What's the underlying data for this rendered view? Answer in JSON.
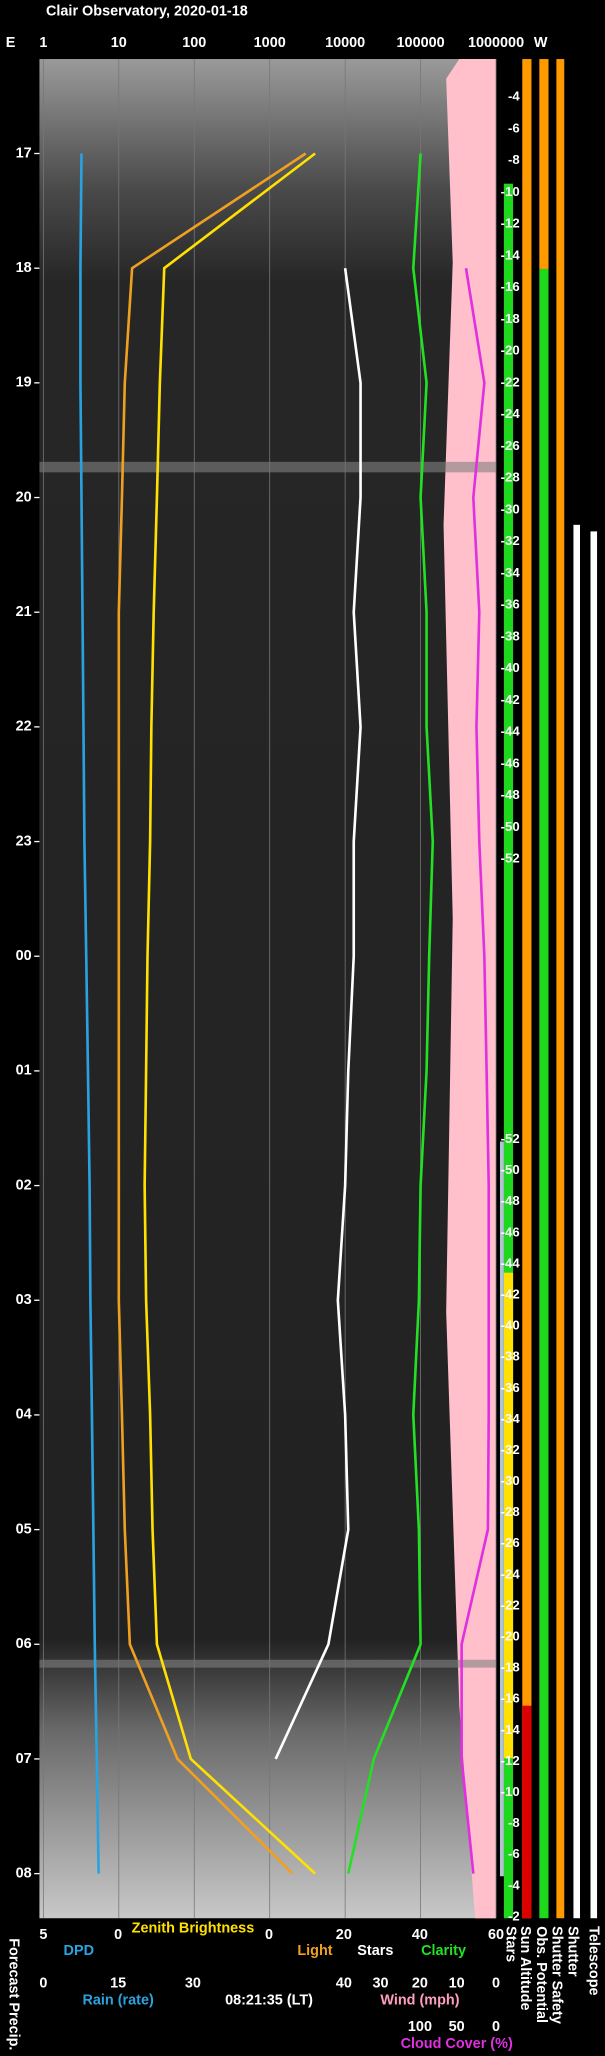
{
  "chart_data": {
    "type": "line",
    "title": "Clair Observatory, 2020-01-18",
    "left_label": "E",
    "right_label": "W",
    "times": [
      "17",
      "18",
      "19",
      "20",
      "21",
      "22",
      "23",
      "00",
      "01",
      "02",
      "03",
      "04",
      "05",
      "06",
      "07",
      "08"
    ],
    "xscale": "log",
    "xlim": [
      1,
      1000000
    ],
    "xticks": [
      1,
      10,
      100,
      1000,
      10000,
      100000,
      1000000
    ],
    "grid": true,
    "series": [
      {
        "name": "DPD",
        "color": "#29a3e0",
        "values": [
          3.2,
          3.1,
          3.1,
          3.2,
          3.3,
          3.4,
          3.5,
          3.7,
          3.9,
          4.1,
          4.2,
          4.4,
          4.6,
          4.8,
          5.1,
          5.4
        ]
      },
      {
        "name": "Zenith Brightness",
        "color": "#ffe000",
        "values": [
          4000,
          40,
          35,
          32,
          29,
          27,
          26,
          24,
          23,
          22,
          23,
          26,
          28,
          32,
          90,
          4000
        ]
      },
      {
        "name": "Light",
        "color": "#f0a020",
        "values": [
          3000,
          15,
          12,
          11,
          10,
          10,
          10,
          10,
          10,
          10,
          10,
          11,
          12,
          14,
          60,
          2000
        ]
      },
      {
        "name": "Stars",
        "color": "#ffffff",
        "values": [
          null,
          10000,
          16000,
          16000,
          13000,
          16000,
          13000,
          13000,
          11000,
          10000,
          8000,
          10000,
          11000,
          6000,
          1200,
          null
        ]
      },
      {
        "name": "Clarity",
        "color": "#22e022",
        "values": [
          100000,
          80000,
          120000,
          100000,
          120000,
          120000,
          145000,
          130000,
          120000,
          100000,
          95000,
          80000,
          95000,
          100000,
          24000,
          11000
        ]
      },
      {
        "name": "Cloud Cover (%)",
        "color": "#e030e0",
        "values": [
          null,
          400000,
          700000,
          500000,
          600000,
          550000,
          600000,
          700000,
          750000,
          800000,
          800000,
          800000,
          780000,
          350000,
          350000,
          500000
        ]
      }
    ],
    "sun_altitude": {
      "label": "Sun Altitude",
      "evening": [
        -4,
        -6,
        -8,
        -10,
        -12,
        -14,
        -16,
        -18,
        -20,
        -22,
        -24,
        -26,
        -28,
        -30,
        -32,
        -34,
        -36,
        -38,
        -40,
        -42,
        -44,
        -46,
        -48,
        -50,
        -52
      ],
      "morning": [
        -52,
        -50,
        -48,
        -46,
        -44,
        -42,
        -40,
        -38,
        -36,
        -34,
        -32,
        -30,
        -28,
        -26,
        -24,
        -22,
        -20,
        -18,
        -16,
        -14,
        -12,
        -10,
        -8,
        -6,
        -4,
        -2
      ]
    },
    "bottom_scales": [
      {
        "ticks": [
          5,
          0
        ]
      },
      {
        "ticks": [
          0,
          20,
          40,
          60
        ]
      },
      {
        "label": "Rain (rate)",
        "ticks": [
          0,
          15,
          30
        ]
      },
      {
        "label": "Wind (mph)",
        "ticks": [
          40,
          30,
          20,
          10,
          0
        ]
      },
      {
        "label": "Cloud Cover (%)",
        "ticks": [
          100,
          50,
          0
        ]
      }
    ],
    "timestamp": "08:21:35 (LT)",
    "forecast_label": "Forecast Precip.",
    "status_labels": [
      "Stars",
      "Sun Altitude",
      "Obs. Potential",
      "Shutter Safety",
      "Shutter",
      "Telescope"
    ]
  }
}
